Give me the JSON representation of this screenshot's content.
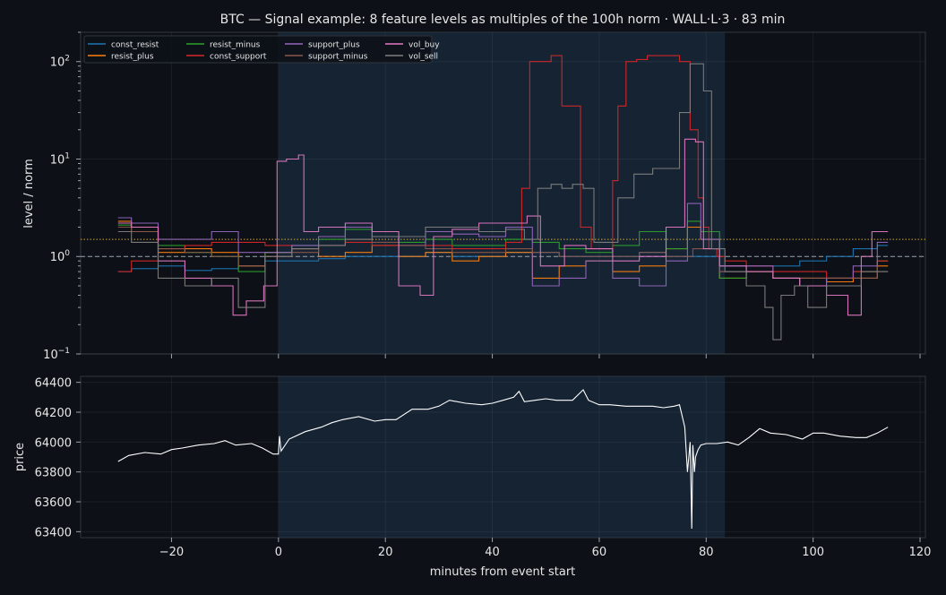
{
  "title": "BTC — Signal example: 8 feature levels as multiples of the 100h norm · WALL·L·3 · 83 min",
  "colors": {
    "background": "#0d1117",
    "text": "#e6e6e6",
    "event_band": "#1f3a56",
    "threshold_line": "#d4a72c",
    "norm_line": "#9aa3ad",
    "price_line": "#ffffff"
  },
  "chart_data": [
    {
      "type": "line",
      "panel": "top",
      "ylabel": "level / norm",
      "yscale": "log",
      "ylim": [
        0.1,
        200
      ],
      "xlim": [
        -37,
        121
      ],
      "yticks": [
        {
          "value": 0.1,
          "base": "10",
          "exp": "−1"
        },
        {
          "value": 1,
          "base": "10",
          "exp": "0"
        },
        {
          "value": 10,
          "base": "10",
          "exp": "1"
        },
        {
          "value": 100,
          "base": "10",
          "exp": "2"
        }
      ],
      "event_band": [
        0,
        83.5
      ],
      "reference_lines": [
        {
          "y": 1.0,
          "style": "dashed"
        },
        {
          "y": 1.5,
          "style": "dotted"
        }
      ],
      "legend": {
        "position": "top-left",
        "columns": 4
      },
      "series": [
        {
          "name": "const_resist",
          "color": "#1f77b4",
          "x": [
            -30,
            -25,
            -20,
            -15,
            -10,
            -5,
            0,
            5,
            10,
            15,
            20,
            25,
            30,
            35,
            40,
            45,
            50,
            55,
            60,
            65,
            70,
            75,
            80,
            85,
            90,
            95,
            100,
            105,
            110,
            114
          ],
          "y": [
            0.7,
            0.75,
            0.8,
            0.72,
            0.75,
            0.8,
            0.9,
            0.9,
            0.95,
            1.0,
            1.0,
            1.0,
            1.1,
            1.0,
            1.0,
            1.1,
            1.1,
            1.0,
            1.0,
            1.0,
            1.1,
            1.0,
            1.0,
            0.8,
            0.8,
            0.8,
            0.9,
            1.0,
            1.2,
            1.3
          ]
        },
        {
          "name": "resist_plus",
          "color": "#ff7f0e",
          "x": [
            -30,
            -25,
            -20,
            -15,
            -10,
            -5,
            0,
            5,
            10,
            15,
            20,
            25,
            30,
            35,
            40,
            45,
            50,
            55,
            60,
            65,
            70,
            75,
            78,
            80,
            85,
            90,
            95,
            100,
            105,
            110,
            114
          ],
          "y": [
            2.3,
            2.0,
            1.1,
            1.2,
            1.1,
            0.8,
            1.1,
            1.2,
            1.0,
            1.1,
            1.3,
            1.0,
            1.1,
            0.9,
            1.0,
            1.1,
            0.6,
            0.8,
            0.9,
            0.7,
            0.8,
            1.2,
            2.0,
            1.5,
            0.6,
            0.7,
            0.6,
            0.6,
            0.55,
            0.6,
            0.8
          ]
        },
        {
          "name": "resist_minus",
          "color": "#2ca02c",
          "x": [
            -30,
            -25,
            -20,
            -15,
            -10,
            -5,
            0,
            5,
            10,
            15,
            20,
            25,
            30,
            35,
            40,
            45,
            50,
            55,
            60,
            65,
            70,
            75,
            78,
            80,
            85,
            90,
            95,
            100,
            105,
            110,
            114
          ],
          "y": [
            2.1,
            1.8,
            1.3,
            1.1,
            1.0,
            0.7,
            1.1,
            1.3,
            1.5,
            1.9,
            1.6,
            1.4,
            1.5,
            1.3,
            1.3,
            1.5,
            1.4,
            1.2,
            1.1,
            1.3,
            1.8,
            1.2,
            2.3,
            1.8,
            0.6,
            0.7,
            0.6,
            0.5,
            0.6,
            0.7,
            0.9
          ]
        },
        {
          "name": "const_support",
          "color": "#d62728",
          "x": [
            -30,
            -25,
            -20,
            -15,
            -10,
            -5,
            0,
            5,
            10,
            15,
            20,
            25,
            30,
            35,
            40,
            45,
            46,
            48,
            50,
            52,
            54,
            56,
            57,
            60,
            62,
            63,
            64,
            66,
            68,
            70,
            72,
            74,
            76,
            78,
            79,
            80,
            81,
            83,
            84,
            85,
            90,
            95,
            100,
            105,
            110,
            114
          ],
          "y": [
            0.7,
            0.9,
            1.2,
            1.3,
            1.4,
            1.4,
            1.3,
            1.2,
            1.3,
            1.4,
            1.3,
            1.3,
            1.3,
            1.2,
            1.2,
            1.4,
            5,
            100,
            100,
            115,
            35,
            35,
            2,
            1.2,
            1.2,
            6,
            35,
            100,
            105,
            115,
            115,
            115,
            100,
            20,
            4,
            2,
            1.2,
            1.0,
            0.9,
            0.9,
            0.8,
            0.7,
            0.7,
            0.6,
            0.7,
            0.9
          ]
        },
        {
          "name": "support_plus",
          "color": "#9467bd",
          "x": [
            -30,
            -25,
            -20,
            -15,
            -10,
            -5,
            0,
            5,
            10,
            15,
            20,
            25,
            30,
            35,
            40,
            45,
            50,
            55,
            60,
            65,
            70,
            75,
            78,
            80,
            85,
            90,
            95,
            100,
            105,
            110,
            114
          ],
          "y": [
            2.5,
            2.2,
            1.5,
            1.5,
            1.8,
            1.1,
            1.1,
            1.3,
            1.6,
            2.0,
            1.6,
            1.3,
            1.8,
            1.7,
            1.6,
            2.0,
            0.5,
            0.6,
            0.9,
            0.6,
            0.5,
            0.9,
            3.5,
            1.5,
            0.7,
            0.8,
            0.6,
            0.5,
            0.6,
            0.8,
            1.4
          ]
        },
        {
          "name": "support_minus",
          "color": "#8c564b",
          "x": [
            -30,
            -25,
            -20,
            -15,
            -10,
            -5,
            0,
            5,
            10,
            15,
            20,
            25,
            30,
            35,
            40,
            45,
            50,
            55,
            60,
            65,
            70,
            75,
            80,
            85,
            90,
            95,
            100,
            105,
            110,
            114
          ],
          "y": [
            2.0,
            1.8,
            1.2,
            1.1,
            1.0,
            0.8,
            1.0,
            1.1,
            1.3,
            1.5,
            1.4,
            1.3,
            1.2,
            1.1,
            1.1,
            1.2,
            1.1,
            1.0,
            1.0,
            1.0,
            1.1,
            1.0,
            1.2,
            0.7,
            0.7,
            0.6,
            0.6,
            0.6,
            0.6,
            0.7
          ]
        },
        {
          "name": "vol_buy",
          "color": "#e377c2",
          "x": [
            -30,
            -25,
            -20,
            -15,
            -10,
            -7,
            -5,
            -0.5,
            0,
            3,
            4.5,
            5,
            10,
            15,
            20,
            25,
            28,
            30,
            35,
            40,
            45,
            48,
            50,
            52,
            55,
            60,
            65,
            70,
            75,
            77,
            79,
            80,
            85,
            90,
            95,
            100,
            105,
            108,
            110,
            112,
            114
          ],
          "y": [
            2.2,
            2.0,
            0.9,
            0.6,
            0.5,
            0.25,
            0.35,
            0.5,
            9.5,
            10,
            11,
            1.8,
            2.0,
            2.2,
            1.8,
            0.5,
            0.4,
            1.6,
            1.9,
            2.2,
            2.2,
            2.6,
            0.8,
            0.8,
            1.3,
            1.2,
            0.9,
            1.0,
            2.0,
            16,
            15,
            1.2,
            0.8,
            0.7,
            0.6,
            0.5,
            0.4,
            0.25,
            1.0,
            1.8,
            1.8
          ]
        },
        {
          "name": "vol_sell",
          "color": "#7f7f7f",
          "x": [
            -30,
            -25,
            -20,
            -15,
            -10,
            -5,
            0,
            5,
            10,
            15,
            20,
            25,
            30,
            35,
            40,
            45,
            47,
            50,
            52,
            54,
            56,
            58,
            60,
            62,
            65,
            68,
            72,
            74,
            76,
            78,
            79,
            80,
            82,
            85,
            90,
            92,
            93,
            95,
            98,
            100,
            105,
            108,
            110,
            114
          ],
          "y": [
            1.8,
            1.4,
            0.6,
            0.5,
            0.6,
            0.3,
            1.0,
            1.2,
            1.3,
            1.5,
            1.6,
            1.6,
            2.0,
            2.0,
            1.8,
            1.9,
            1.5,
            5,
            5.5,
            5,
            5.5,
            5,
            1.4,
            1.4,
            4,
            7,
            8,
            8,
            30,
            95,
            95,
            50,
            1.2,
            0.7,
            0.5,
            0.3,
            0.14,
            0.4,
            0.5,
            0.3,
            0.5,
            0.5,
            0.7,
            0.7
          ]
        }
      ]
    },
    {
      "type": "line",
      "panel": "bottom",
      "ylabel": "price",
      "xlabel": "minutes from event start",
      "xlim": [
        -37,
        121
      ],
      "ylim": [
        63360,
        64440
      ],
      "yticks": [
        63400,
        63600,
        63800,
        64000,
        64200,
        64400
      ],
      "xticks": [
        -20,
        0,
        20,
        40,
        60,
        80,
        100,
        120
      ],
      "event_band": [
        0,
        83.5
      ],
      "series": [
        {
          "name": "price",
          "color": "#ffffff",
          "x": [
            -30,
            -28,
            -25,
            -22,
            -20,
            -18,
            -15,
            -12,
            -10,
            -8,
            -5,
            -3,
            -1,
            0,
            0.2,
            0.5,
            2,
            5,
            8,
            10,
            12,
            15,
            18,
            20,
            22,
            25,
            28,
            30,
            32,
            35,
            38,
            40,
            42,
            44,
            45,
            46,
            48,
            50,
            52,
            55,
            57,
            58,
            60,
            62,
            65,
            68,
            70,
            72,
            74,
            75,
            76,
            76.5,
            77,
            77.3,
            77.5,
            77.8,
            78,
            78.5,
            79,
            80,
            82,
            84,
            86,
            88,
            90,
            92,
            95,
            98,
            100,
            102,
            105,
            108,
            110,
            112,
            114
          ],
          "y": [
            63870,
            63910,
            63930,
            63920,
            63950,
            63960,
            63980,
            63990,
            64010,
            63980,
            63990,
            63960,
            63920,
            63920,
            64040,
            63940,
            64020,
            64070,
            64100,
            64130,
            64150,
            64170,
            64140,
            64150,
            64150,
            64220,
            64220,
            64240,
            64280,
            64260,
            64250,
            64260,
            64280,
            64300,
            64340,
            64270,
            64280,
            64290,
            64280,
            64280,
            64350,
            64280,
            64250,
            64250,
            64240,
            64240,
            64240,
            64230,
            64240,
            64250,
            64100,
            63800,
            64000,
            63420,
            63980,
            63800,
            63900,
            63950,
            63980,
            63990,
            63990,
            64000,
            63980,
            64030,
            64090,
            64060,
            64050,
            64020,
            64060,
            64060,
            64040,
            64030,
            64030,
            64060,
            64100
          ]
        }
      ]
    }
  ]
}
